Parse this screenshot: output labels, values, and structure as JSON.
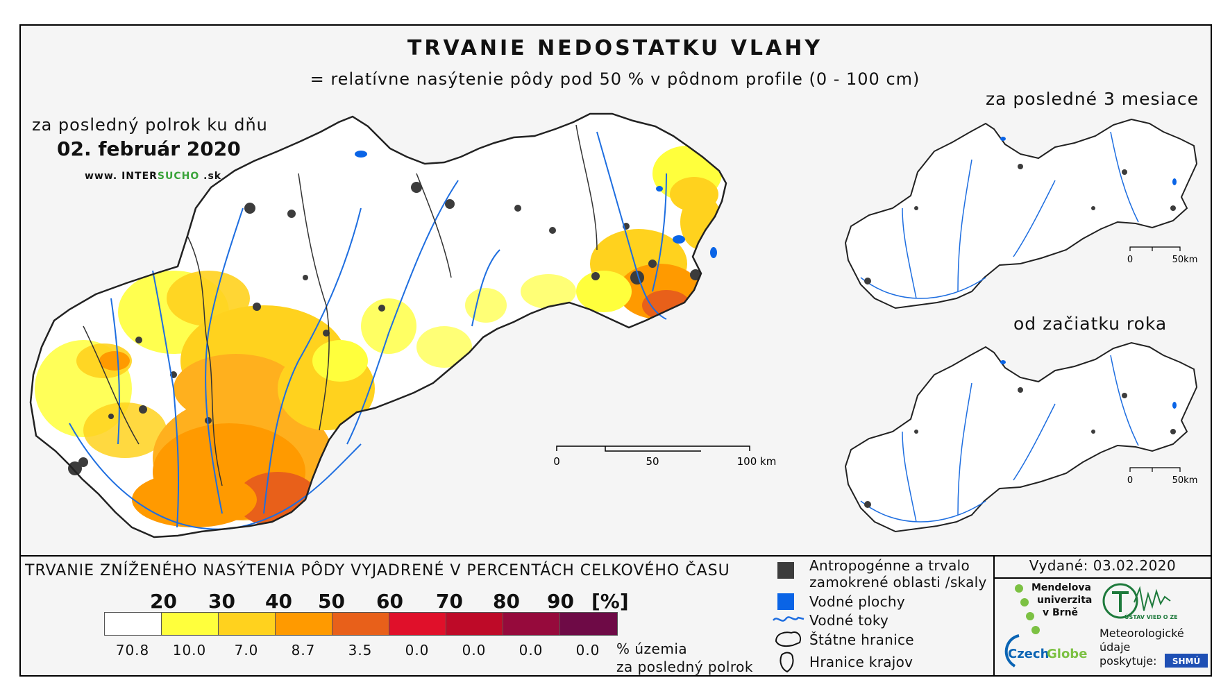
{
  "header": {
    "title": "TRVANIE NEDOSTATKU VLAHY",
    "subtitle": "= relatívne nasýtenie pôdy pod 50 % v pôdnom profile (0 - 100 cm)"
  },
  "main_map": {
    "period_label": "za posledný polrok ku dňu",
    "date": "02. február 2020",
    "source_url": {
      "prefix": "www. INTER",
      "highlight": "SUCHO",
      "suffix": " .sk"
    },
    "scalebar": {
      "ticks": [
        "0",
        "50",
        "100 km"
      ]
    }
  },
  "insets": [
    {
      "title": "za posledné 3 mesiace",
      "scalebar": [
        "0",
        "50km"
      ]
    },
    {
      "title": "od začiatku roka",
      "scalebar": [
        "0",
        "50km"
      ]
    }
  ],
  "legend": {
    "title": "TRVANIE ZNÍŽENÉHO NASÝTENIA PÔDY VYJADRENÉ V PERCENTÁCH CELKOVÉHO ČASU",
    "thresholds": [
      "20",
      "30",
      "40",
      "50",
      "60",
      "70",
      "80",
      "90"
    ],
    "unit": "[%]",
    "classes": [
      {
        "color": "#ffffff",
        "share": "70.8"
      },
      {
        "color": "#ffff3c",
        "share": "10.0"
      },
      {
        "color": "#ffd21e",
        "share": "7.0"
      },
      {
        "color": "#ff9a00",
        "share": "8.7"
      },
      {
        "color": "#e8601a",
        "share": "3.5"
      },
      {
        "color": "#e0102a",
        "share": "0.0"
      },
      {
        "color": "#be0a28",
        "share": "0.0"
      },
      {
        "color": "#960a3c",
        "share": "0.0"
      },
      {
        "color": "#6e0a46",
        "share": "0.0"
      }
    ],
    "share_label_line1": "% územia",
    "share_label_line2": "za posledný polrok"
  },
  "map_key": {
    "anthropogenic_line1": "Antropogénne a trvalo",
    "anthropogenic_line2": "zamokrené oblasti /skaly",
    "water_bodies": "Vodné plochy",
    "rivers": "Vodné toky",
    "state_border": "Štátne hranice",
    "region_border": "Hranice krajov",
    "colors": {
      "anthropogenic": "#3c3c3c",
      "water": "#0a64e6",
      "river": "#1e6ee0"
    }
  },
  "issued": "Vydané: 03.02.2020",
  "logos": {
    "mendel": [
      "Mendelova",
      "univerzita",
      "v Brně"
    ],
    "czechglobe": {
      "czech": "Czech",
      "globe": "Globe"
    },
    "ustav": "ÚSTAV VIED O ZEMI",
    "meteo": [
      "Meteorologické",
      "údaje",
      "poskytuje:"
    ],
    "shmu": "SHMÚ"
  }
}
